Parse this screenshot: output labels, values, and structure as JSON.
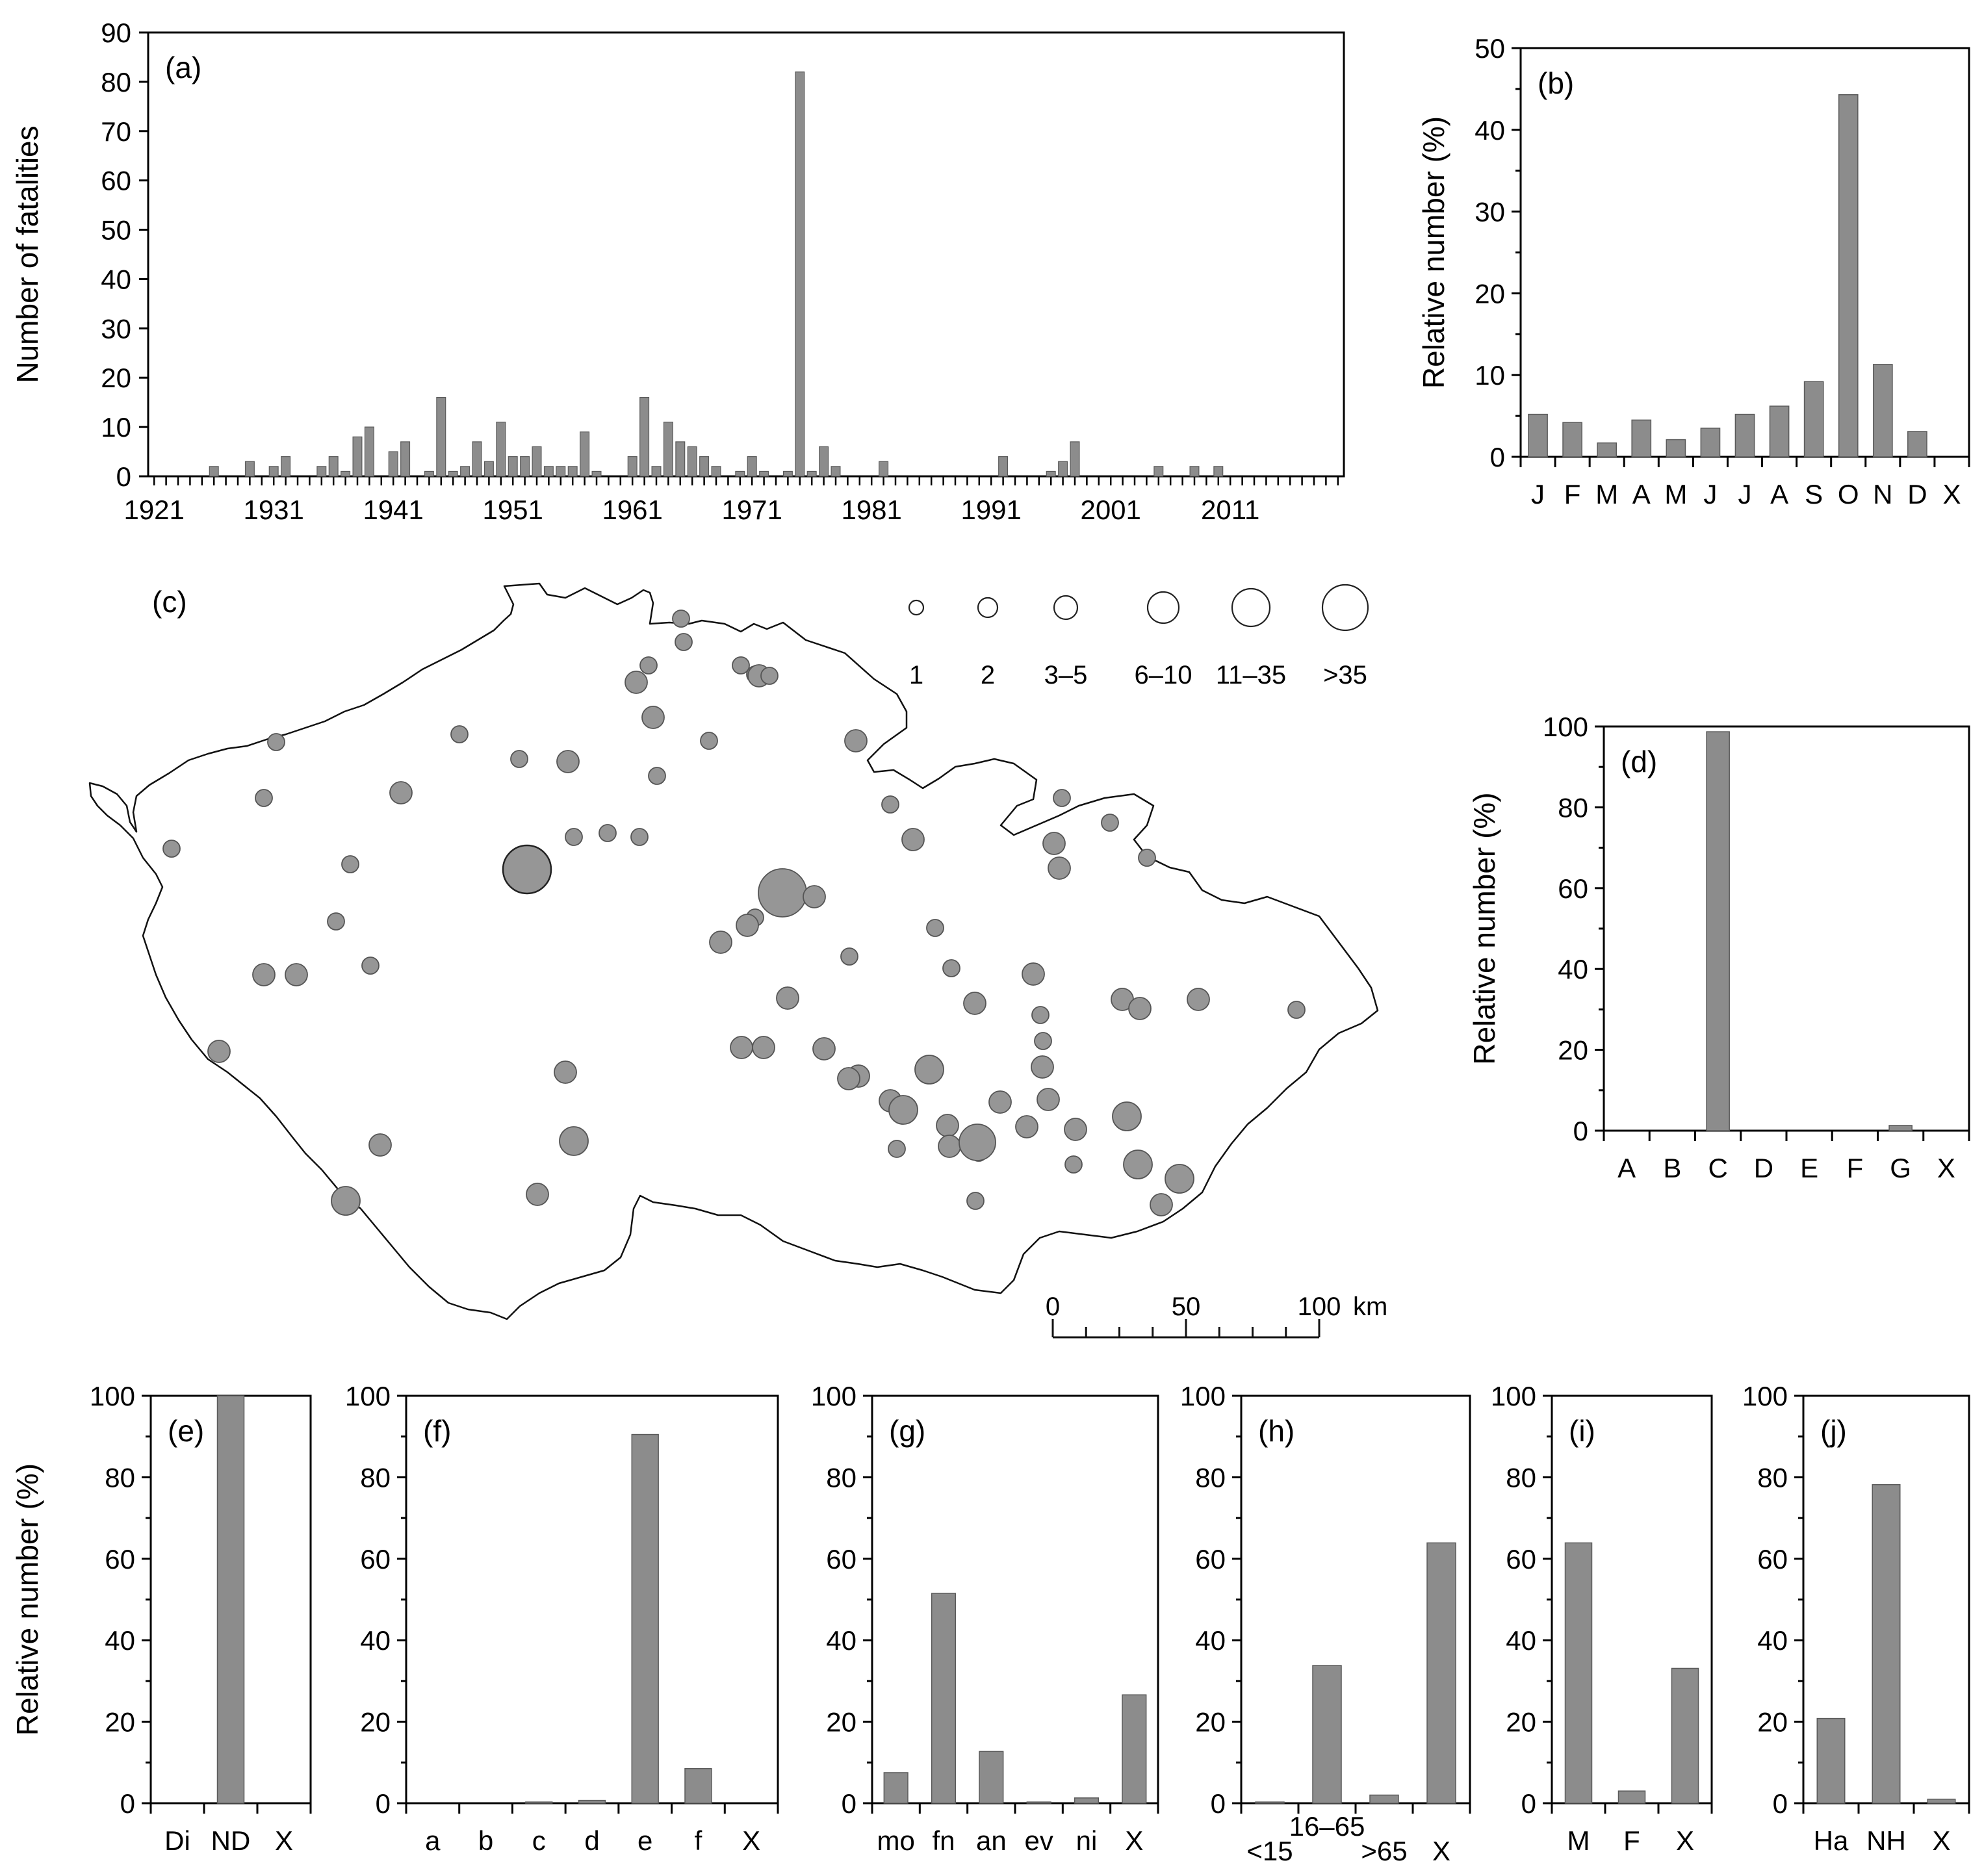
{
  "colors": {
    "bar": "#8c8c8c",
    "bar_edge": "#5a5a5a",
    "axis": "#000000",
    "site": "#969696",
    "site_edge": "#555555"
  },
  "chart_data": [
    {
      "id": "a",
      "type": "bar",
      "panel_label": "(a)",
      "xlabel": "",
      "ylabel": "Number of fatalities",
      "ylim": [
        0,
        90
      ],
      "yticks": [
        0,
        10,
        20,
        30,
        40,
        50,
        60,
        70,
        80,
        90
      ],
      "x_start": 1921,
      "x_end": 2020,
      "x_tick_labels": [
        "1921",
        "1931",
        "1941",
        "1951",
        "1961",
        "1971",
        "1981",
        "1991",
        "2001",
        "2011"
      ],
      "x": [
        1926,
        1929,
        1931,
        1932,
        1935,
        1936,
        1937,
        1938,
        1939,
        1941,
        1942,
        1944,
        1945,
        1946,
        1947,
        1948,
        1949,
        1950,
        1951,
        1952,
        1953,
        1954,
        1955,
        1956,
        1957,
        1958,
        1961,
        1962,
        1963,
        1964,
        1965,
        1966,
        1967,
        1968,
        1970,
        1971,
        1972,
        1974,
        1975,
        1976,
        1977,
        1978,
        1982,
        1992,
        1996,
        1997,
        1998,
        2005,
        2008,
        2010
      ],
      "values": [
        2,
        3,
        2,
        4,
        2,
        4,
        1,
        8,
        10,
        5,
        7,
        1,
        16,
        1,
        2,
        7,
        3,
        11,
        4,
        4,
        6,
        2,
        2,
        2,
        9,
        1,
        4,
        16,
        2,
        11,
        7,
        6,
        4,
        2,
        1,
        4,
        1,
        1,
        82,
        1,
        6,
        2,
        3,
        4,
        1,
        3,
        7,
        2,
        2,
        2
      ]
    },
    {
      "id": "b",
      "type": "bar",
      "panel_label": "(b)",
      "xlabel": "",
      "ylabel": "Relative number (%)",
      "ylim": [
        0,
        50
      ],
      "yticks": [
        0,
        10,
        20,
        30,
        40,
        50
      ],
      "categories": [
        "J",
        "F",
        "M",
        "A",
        "M",
        "J",
        "J",
        "A",
        "S",
        "O",
        "N",
        "D",
        "X"
      ],
      "values": [
        5.2,
        4.2,
        1.7,
        4.5,
        2.1,
        3.5,
        5.2,
        6.2,
        9.2,
        44.3,
        11.3,
        3.1,
        0
      ]
    },
    {
      "id": "c",
      "type": "scatter",
      "panel_label": "(c)",
      "legend": {
        "labels": [
          "1",
          "2",
          "3–5",
          "6–10",
          "11–35",
          ">35"
        ],
        "placement": "top-right"
      },
      "scale_bar": {
        "ticks": [
          "0",
          "50",
          "100"
        ],
        "unit": "km"
      },
      "site_classes": [
        1,
        1,
        1,
        1,
        1,
        2,
        1,
        2,
        2,
        1,
        1,
        1,
        2,
        2,
        1,
        1,
        1,
        2,
        1,
        1,
        1,
        1,
        1,
        1,
        1,
        2,
        2,
        1,
        1,
        2,
        2,
        1,
        1,
        2,
        5,
        2,
        2,
        1,
        1,
        1,
        2,
        2,
        1,
        2,
        2,
        2,
        1,
        2,
        2,
        2,
        1,
        2,
        2,
        2,
        2,
        3,
        2,
        2,
        2,
        1,
        2,
        2,
        2,
        2,
        3,
        2,
        2,
        2,
        3,
        2,
        1,
        1,
        4,
        1,
        3,
        3,
        2,
        2,
        3,
        3,
        2,
        1
      ]
    },
    {
      "id": "d",
      "type": "bar",
      "panel_label": "(d)",
      "xlabel": "",
      "ylabel": "Relative number (%)",
      "ylim": [
        0,
        100
      ],
      "yticks": [
        0,
        20,
        40,
        60,
        80,
        100
      ],
      "categories": [
        "A",
        "B",
        "C",
        "D",
        "E",
        "F",
        "G",
        "X"
      ],
      "values": [
        0,
        0,
        98.7,
        0,
        0,
        0,
        1.3,
        0
      ]
    },
    {
      "id": "e",
      "type": "bar",
      "panel_label": "(e)",
      "xlabel": "",
      "ylabel": "Relative number (%)",
      "ylim": [
        0,
        100
      ],
      "yticks": [
        0,
        20,
        40,
        60,
        80,
        100
      ],
      "categories": [
        "Di",
        "ND",
        "X"
      ],
      "values": [
        0,
        100,
        0
      ]
    },
    {
      "id": "f",
      "type": "bar",
      "panel_label": "(f)",
      "xlabel": "",
      "ylabel": "",
      "ylim": [
        0,
        100
      ],
      "yticks": [
        0,
        20,
        40,
        60,
        80,
        100
      ],
      "categories": [
        "a",
        "b",
        "c",
        "d",
        "e",
        "f",
        "X"
      ],
      "values": [
        0,
        0,
        0.3,
        0.7,
        90.5,
        8.5,
        0
      ]
    },
    {
      "id": "g",
      "type": "bar",
      "panel_label": "(g)",
      "xlabel": "",
      "ylabel": "",
      "ylim": [
        0,
        100
      ],
      "yticks": [
        0,
        20,
        40,
        60,
        80,
        100
      ],
      "categories": [
        "mo",
        "fn",
        "an",
        "ev",
        "ni",
        "X"
      ],
      "values": [
        7.5,
        51.5,
        12.7,
        0.3,
        1.3,
        26.6
      ]
    },
    {
      "id": "h",
      "type": "bar",
      "panel_label": "(h)",
      "xlabel": "",
      "ylabel": "",
      "ylim": [
        0,
        100
      ],
      "yticks": [
        0,
        20,
        40,
        60,
        80,
        100
      ],
      "categories": [
        "<15",
        "16–65",
        ">65",
        "X"
      ],
      "values": [
        0.3,
        33.8,
        2.0,
        63.9
      ]
    },
    {
      "id": "i",
      "type": "bar",
      "panel_label": "(i)",
      "xlabel": "",
      "ylabel": "",
      "ylim": [
        0,
        100
      ],
      "yticks": [
        0,
        20,
        40,
        60,
        80,
        100
      ],
      "categories": [
        "M",
        "F",
        "X"
      ],
      "values": [
        63.9,
        3.0,
        33.1
      ]
    },
    {
      "id": "j",
      "type": "bar",
      "panel_label": "(j)",
      "xlabel": "",
      "ylabel": "",
      "ylim": [
        0,
        100
      ],
      "yticks": [
        0,
        20,
        40,
        60,
        80,
        100
      ],
      "categories": [
        "Ha",
        "NH",
        "X"
      ],
      "values": [
        20.8,
        78.2,
        1.0
      ]
    }
  ]
}
